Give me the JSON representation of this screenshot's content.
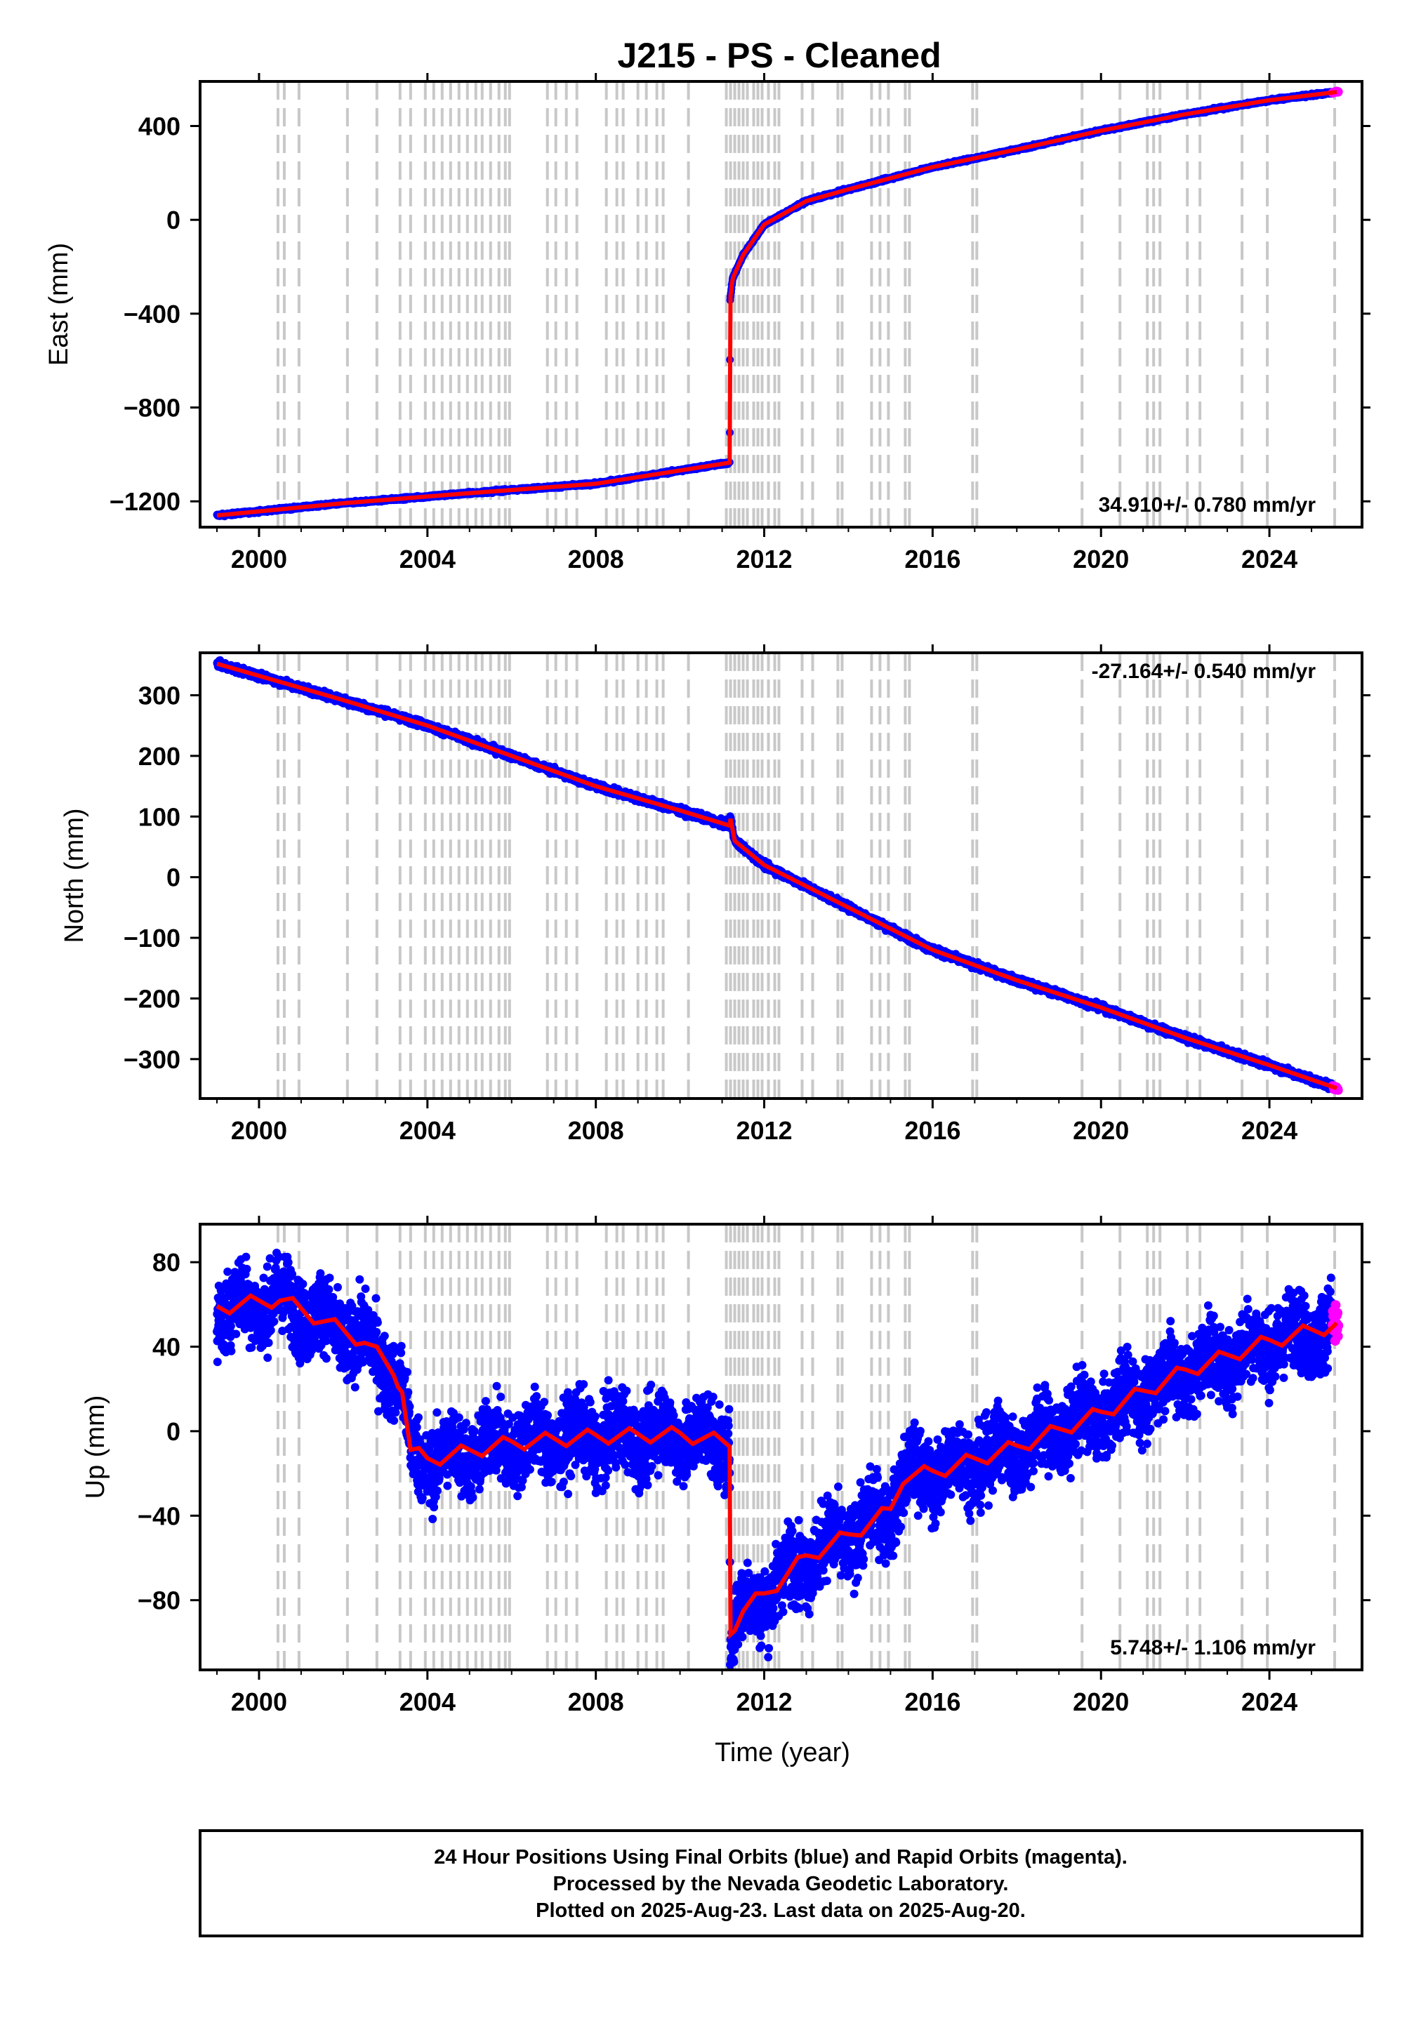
{
  "title": "J215  - PS - Cleaned",
  "footer": {
    "line1": "24 Hour Positions Using Final Orbits (blue) and Rapid Orbits (magenta).",
    "line2": "Processed by the Nevada Geodetic Laboratory.",
    "line3": "Plotted on 2025-Aug-23. Last data on 2025-Aug-20."
  },
  "colors": {
    "final_orbits": "#0000ff",
    "rapid_orbits": "#ff00ff",
    "model": "#ff0000",
    "event_lines": "#c8c8c8"
  },
  "chart_data": [
    {
      "type": "scatter",
      "name": "east",
      "ylabel": "East (mm)",
      "xlabel": "",
      "xlim": [
        1998.6,
        2026.2
      ],
      "ylim": [
        -1310,
        590
      ],
      "xticks": [
        2000,
        2004,
        2008,
        2012,
        2016,
        2020,
        2024
      ],
      "yticks": [
        -1200,
        -800,
        -400,
        0,
        400
      ],
      "ytick_labels": [
        "−1200",
        "−800",
        "−400",
        "0",
        "400"
      ],
      "rate_text": "34.910+/- 0.780 mm/yr",
      "rate_position": "bottom-right",
      "noise": 4,
      "trend": [
        [
          1999.0,
          -1260
        ],
        [
          2002.0,
          -1208
        ],
        [
          2005.0,
          -1165
        ],
        [
          2008.0,
          -1125
        ],
        [
          2011.18,
          -1035
        ],
        [
          2011.19,
          -340
        ],
        [
          2011.25,
          -250
        ],
        [
          2011.5,
          -150
        ],
        [
          2012.0,
          -20
        ],
        [
          2013.0,
          80
        ],
        [
          2014.0,
          130
        ],
        [
          2016.0,
          225
        ],
        [
          2018.0,
          300
        ],
        [
          2020.0,
          380
        ],
        [
          2022.0,
          450
        ],
        [
          2024.0,
          510
        ],
        [
          2025.6,
          545
        ]
      ]
    },
    {
      "type": "scatter",
      "name": "north",
      "ylabel": "North (mm)",
      "xlabel": "",
      "xlim": [
        1998.6,
        2026.2
      ],
      "ylim": [
        -365,
        370
      ],
      "xticks": [
        2000,
        2004,
        2008,
        2012,
        2016,
        2020,
        2024
      ],
      "yticks": [
        -300,
        -200,
        -100,
        0,
        100,
        200,
        300
      ],
      "ytick_labels": [
        "−300",
        "−200",
        "−100",
        "0",
        "100",
        "200",
        "300"
      ],
      "rate_text": "-27.164+/- 0.540 mm/yr",
      "rate_position": "top-right",
      "noise": 4,
      "trend": [
        [
          1999.0,
          352
        ],
        [
          2000.0,
          332
        ],
        [
          2002.0,
          292
        ],
        [
          2004.0,
          250
        ],
        [
          2006.0,
          200
        ],
        [
          2008.0,
          150
        ],
        [
          2010.0,
          110
        ],
        [
          2011.18,
          85
        ],
        [
          2011.19,
          100
        ],
        [
          2011.3,
          60
        ],
        [
          2012.0,
          20
        ],
        [
          2014.0,
          -50
        ],
        [
          2016.0,
          -120
        ],
        [
          2018.0,
          -170
        ],
        [
          2020.0,
          -215
        ],
        [
          2022.0,
          -265
        ],
        [
          2024.0,
          -310
        ],
        [
          2025.6,
          -348
        ]
      ]
    },
    {
      "type": "scatter",
      "name": "up",
      "ylabel": "Up (mm)",
      "xlabel": "Time (year)",
      "xlim": [
        1998.6,
        2026.2
      ],
      "ylim": [
        -113,
        98
      ],
      "xticks": [
        2000,
        2004,
        2008,
        2012,
        2016,
        2020,
        2024
      ],
      "yticks": [
        -80,
        -40,
        0,
        40,
        80
      ],
      "ytick_labels": [
        "−80",
        "−40",
        "0",
        "40",
        "80"
      ],
      "rate_text": "5.748+/- 1.106 mm/yr",
      "rate_position": "bottom-right",
      "noise": 13,
      "seasonal": 6,
      "trend": [
        [
          1999.0,
          58
        ],
        [
          2000.5,
          62
        ],
        [
          2001.5,
          52
        ],
        [
          2002.5,
          42
        ],
        [
          2003.2,
          28
        ],
        [
          2003.4,
          20
        ],
        [
          2003.6,
          -10
        ],
        [
          2004.0,
          -14
        ],
        [
          2006.0,
          -6
        ],
        [
          2008.0,
          -3
        ],
        [
          2010.0,
          -2
        ],
        [
          2011.18,
          -6
        ],
        [
          2011.19,
          -95
        ],
        [
          2011.5,
          -85
        ],
        [
          2012.0,
          -78
        ],
        [
          2013.0,
          -60
        ],
        [
          2014.0,
          -50
        ],
        [
          2015.0,
          -38
        ],
        [
          2015.3,
          -22
        ],
        [
          2016.0,
          -20
        ],
        [
          2018.0,
          -8
        ],
        [
          2020.0,
          8
        ],
        [
          2022.0,
          28
        ],
        [
          2024.0,
          42
        ],
        [
          2025.6,
          50
        ]
      ]
    }
  ],
  "event_years": [
    2000.45,
    2000.6,
    2000.95,
    2002.1,
    2002.8,
    2003.35,
    2003.6,
    2003.95,
    2004.15,
    2004.35,
    2004.55,
    2004.75,
    2004.95,
    2005.15,
    2005.3,
    2005.5,
    2005.7,
    2005.85,
    2005.95,
    2006.85,
    2007.05,
    2007.3,
    2007.55,
    2008.25,
    2008.5,
    2008.65,
    2009.0,
    2009.2,
    2009.45,
    2009.6,
    2010.2,
    2011.1,
    2011.2,
    2011.3,
    2011.4,
    2011.5,
    2011.6,
    2011.75,
    2011.85,
    2011.95,
    2012.1,
    2012.25,
    2012.35,
    2012.9,
    2013.15,
    2013.75,
    2013.85,
    2014.55,
    2014.75,
    2014.95,
    2015.35,
    2015.45,
    2016.95,
    2017.05,
    2019.55,
    2020.45,
    2021.1,
    2021.25,
    2021.4,
    2022.05,
    2022.35,
    2023.35,
    2023.95,
    2025.55
  ]
}
